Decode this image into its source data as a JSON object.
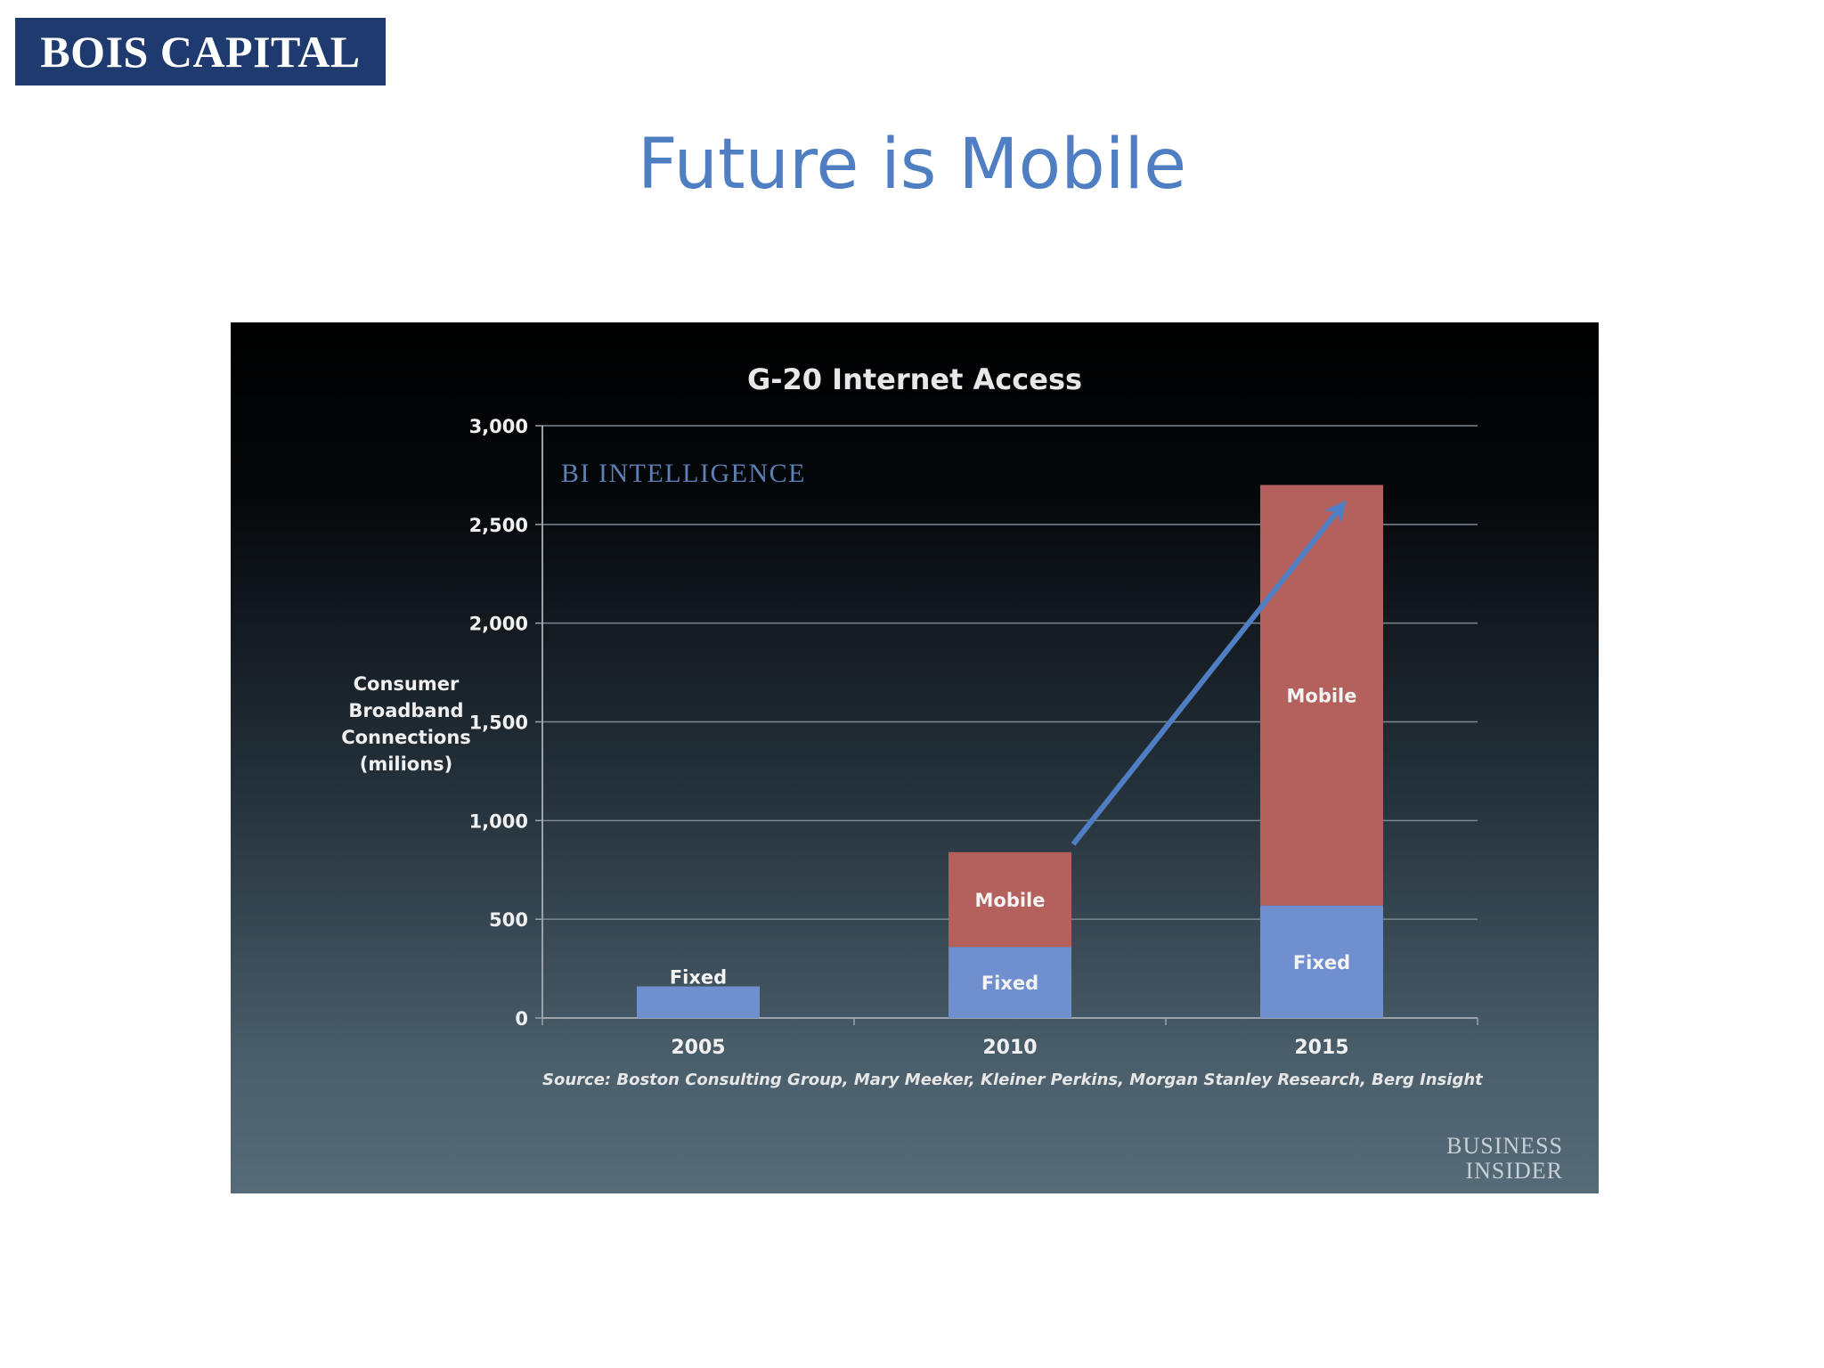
{
  "brand": {
    "logo_text": "BOIS CAPITAL"
  },
  "slide": {
    "title": "Future is Mobile"
  },
  "chart_data": {
    "type": "bar",
    "stacked": true,
    "title": "G-20 Internet Access",
    "ylabel_lines": [
      "Consumer",
      "Broadband",
      "Connections",
      "(milions)"
    ],
    "xlabel": "",
    "categories": [
      "2005",
      "2010",
      "2015"
    ],
    "series": [
      {
        "name": "Fixed",
        "values": [
          160,
          360,
          570
        ],
        "color": "#6f8fcf"
      },
      {
        "name": "Mobile",
        "values": [
          0,
          480,
          2130
        ],
        "color": "#b4615d"
      }
    ],
    "ylim": [
      0,
      3000
    ],
    "yticks": [
      0,
      500,
      1000,
      1500,
      2000,
      2500,
      3000
    ],
    "ytick_labels": [
      "0",
      "500",
      "1,000",
      "1,500",
      "2,000",
      "2,500",
      "3,000"
    ],
    "grid": true,
    "segment_labels": [
      {
        "category": "2005",
        "series": "Fixed",
        "text": "Fixed"
      },
      {
        "category": "2010",
        "series": "Mobile",
        "text": "Mobile"
      },
      {
        "category": "2010",
        "series": "Fixed",
        "text": "Fixed"
      },
      {
        "category": "2015",
        "series": "Mobile",
        "text": "Mobile"
      },
      {
        "category": "2015",
        "series": "Fixed",
        "text": "Fixed"
      }
    ],
    "trend_arrow": {
      "from": {
        "category": "2010",
        "value": 880
      },
      "to": {
        "category": "2015",
        "value": 2580
      },
      "color": "#4f7ec2"
    },
    "source": "Source: Boston Consulting Group, Mary Meeker, Kleiner Perkins, Morgan Stanley Research, Berg Insight",
    "watermark_top": "BI INTELLIGENCE",
    "watermark_bottom": [
      "BUSINESS",
      "INSIDER"
    ]
  }
}
